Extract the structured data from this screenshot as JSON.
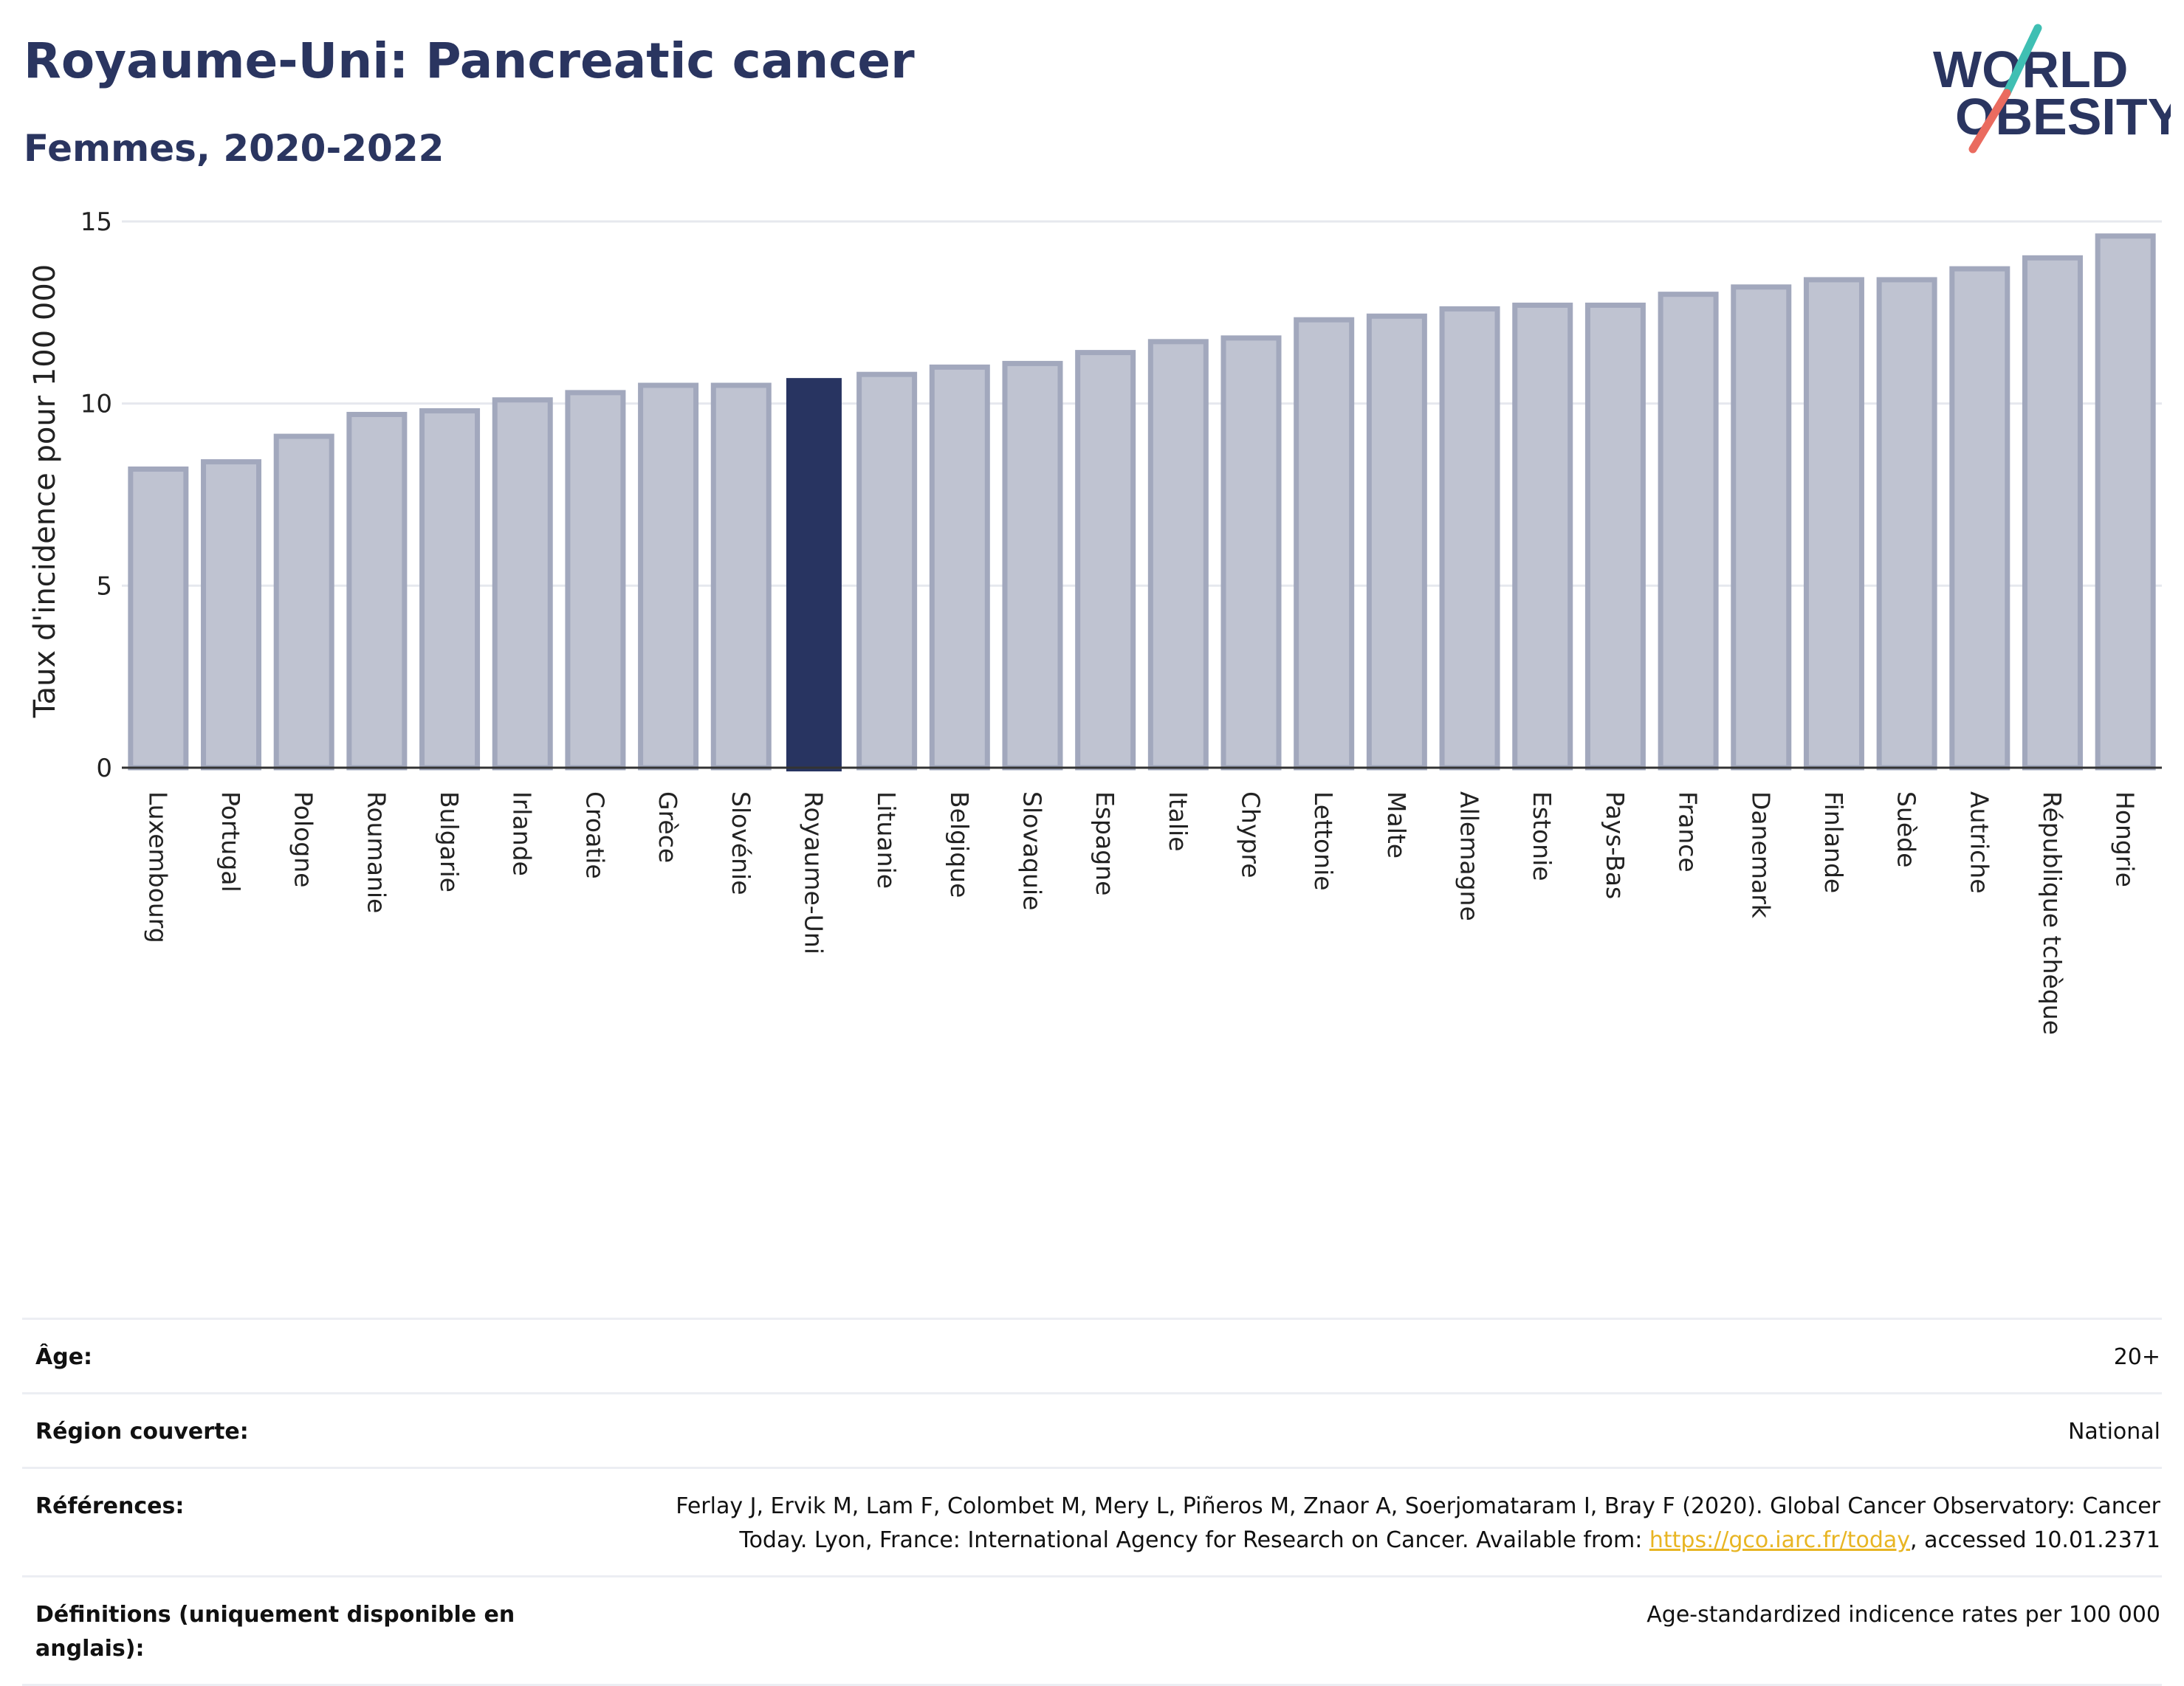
{
  "header": {
    "title": "Royaume-Uni: Pancreatic cancer",
    "subtitle": "Femmes, 2020-2022",
    "logo_line1": "WORLD",
    "logo_line2": "OBESITY"
  },
  "colors": {
    "bar": "#bfc3d1",
    "bar_stroke": "#a2a8bd",
    "highlight": "#283461",
    "title": "#2a3560",
    "logo_teal": "#3fbfb3",
    "logo_coral": "#ea6b5f"
  },
  "chart_data": {
    "type": "bar",
    "title": "Royaume-Uni: Pancreatic cancer",
    "subtitle": "Femmes, 2020-2022",
    "ylabel": "Taux d'incidence pour 100 000",
    "xlabel": "",
    "ylim": [
      0,
      15
    ],
    "yticks": [
      0,
      5,
      10,
      15
    ],
    "grid": true,
    "highlight": "Royaume-Uni",
    "categories": [
      "Luxembourg",
      "Portugal",
      "Pologne",
      "Roumanie",
      "Bulgarie",
      "Irlande",
      "Croatie",
      "Grèce",
      "Slovénie",
      "Royaume-Uni",
      "Lituanie",
      "Belgique",
      "Slovaquie",
      "Espagne",
      "Italie",
      "Chypre",
      "Lettonie",
      "Malte",
      "Allemagne",
      "Estonie",
      "Pays-Bas",
      "France",
      "Danemark",
      "Finlande",
      "Suède",
      "Autriche",
      "République tchèque",
      "Hongrie"
    ],
    "values": [
      8.2,
      8.4,
      9.1,
      9.7,
      9.8,
      10.1,
      10.3,
      10.5,
      10.5,
      10.7,
      10.8,
      11.0,
      11.1,
      11.4,
      11.7,
      11.8,
      12.3,
      12.4,
      12.6,
      12.7,
      12.7,
      13.0,
      13.2,
      13.4,
      13.4,
      13.7,
      14.0,
      14.6
    ]
  },
  "meta": {
    "age_label": "Âge:",
    "age_value": "20+",
    "region_label": "Région couverte:",
    "region_value": "National",
    "refs_label": "Références:",
    "refs_text_before": "Ferlay J, Ervik M, Lam F, Colombet M, Mery L, Piñeros M, Znaor A, Soerjomataram I, Bray F (2020). Global Cancer Observatory: Cancer Today. Lyon, France: International Agency for Research on Cancer. Available from: ",
    "refs_link": "https://gco.iarc.fr/today",
    "refs_text_after": ", accessed 10.01.2371",
    "def_label": "Définitions (uniquement disponible en anglais):",
    "def_value": "Age-standardized indicence rates per 100 000"
  }
}
